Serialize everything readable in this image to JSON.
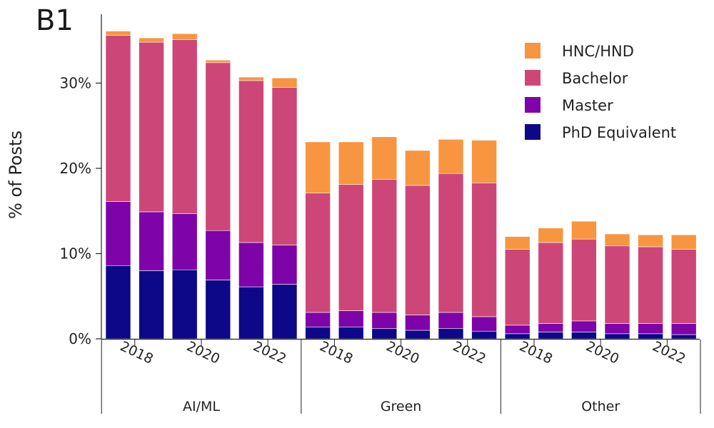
{
  "panel_label": "B1",
  "chart_data": {
    "type": "bar",
    "stacked": true,
    "title": "",
    "xlabel": "",
    "ylabel": "% of Posts",
    "ylim": [
      0,
      37
    ],
    "yticks": [
      0,
      10,
      20,
      30
    ],
    "ytick_labels": [
      "0%",
      "10%",
      "20%",
      "30%"
    ],
    "groups": [
      "AI/ML",
      "Green",
      "Other"
    ],
    "years": [
      2018,
      2019,
      2020,
      2021,
      2022,
      2023
    ],
    "xtick_labels": [
      "2018",
      "2020",
      "2022"
    ],
    "legend_position": "top-right",
    "colors": {
      "HNC/HND": "#f89540",
      "Bachelor": "#cc4778",
      "Master": "#7e03a8",
      "PhD Equivalent": "#0d0887"
    },
    "legend_order": [
      "HNC/HND",
      "Bachelor",
      "Master",
      "PhD Equivalent"
    ],
    "series": [
      {
        "name": "PhD Equivalent",
        "values": [
          8.6,
          8.0,
          8.1,
          6.9,
          6.1,
          6.4,
          1.4,
          1.4,
          1.2,
          1.0,
          1.2,
          0.9,
          0.6,
          0.8,
          0.8,
          0.6,
          0.6,
          0.5
        ]
      },
      {
        "name": "Master",
        "values": [
          7.5,
          6.9,
          6.6,
          5.8,
          5.2,
          4.6,
          1.7,
          1.9,
          1.9,
          1.8,
          1.9,
          1.7,
          1.0,
          1.0,
          1.3,
          1.2,
          1.2,
          1.3
        ]
      },
      {
        "name": "Bachelor",
        "values": [
          19.5,
          19.9,
          20.4,
          19.7,
          19.0,
          18.5,
          14.0,
          14.8,
          15.6,
          15.2,
          16.3,
          15.7,
          8.9,
          9.5,
          9.6,
          9.1,
          9.0,
          8.7
        ]
      },
      {
        "name": "HNC/HND",
        "values": [
          0.5,
          0.5,
          0.7,
          0.3,
          0.4,
          1.1,
          6.0,
          5.0,
          5.0,
          4.1,
          4.0,
          5.0,
          1.5,
          1.7,
          2.1,
          1.4,
          1.4,
          1.7
        ]
      }
    ]
  }
}
